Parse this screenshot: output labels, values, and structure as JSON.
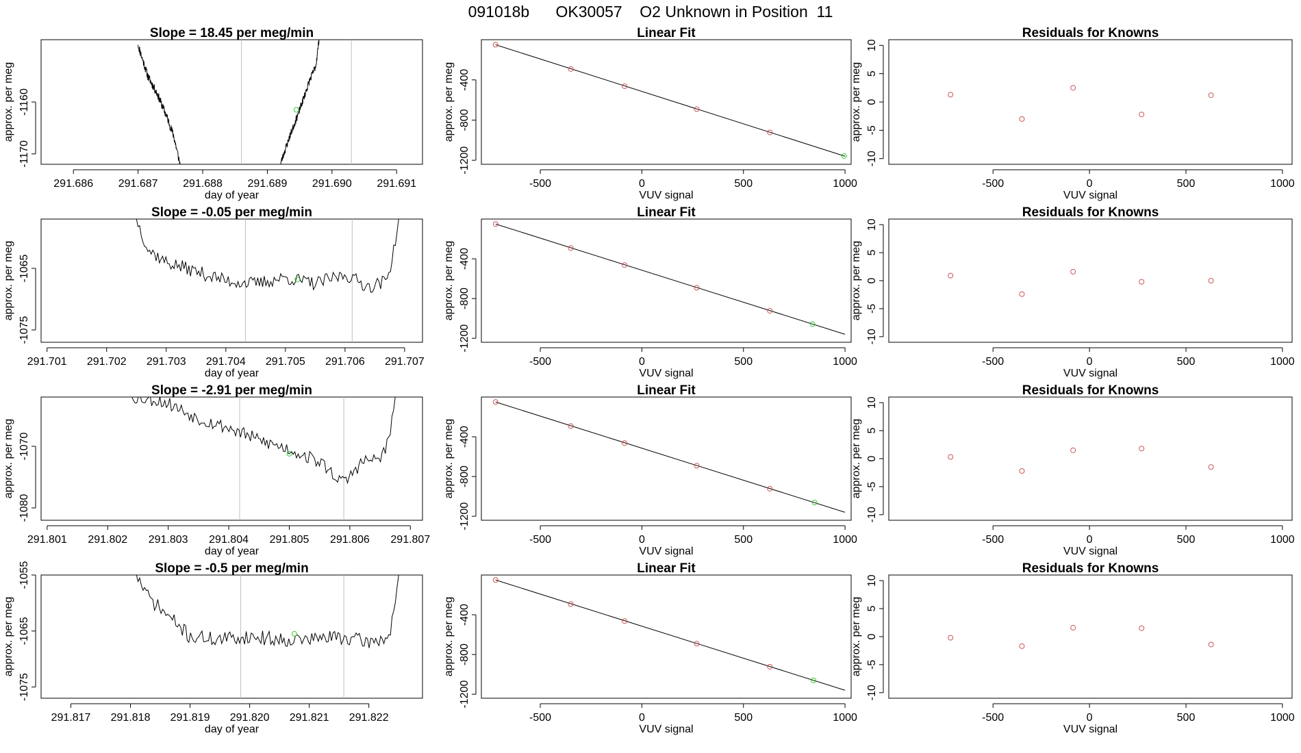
{
  "header": {
    "run_id": "091018b",
    "tank_id": "OK30057",
    "description": "O2 Unknown in Position  11"
  },
  "colors": {
    "known": "#cc5555",
    "unknown": "#33cc33",
    "line": "#000000",
    "marker_line": "#bfbfbf"
  },
  "chart_data": [
    {
      "type": "line",
      "row": 0,
      "panel": "trace",
      "title": "Slope =  18.45  per meg/min",
      "xlabel": "day of year",
      "ylabel": "approx. per meg",
      "xlim": [
        291.6855,
        291.6914
      ],
      "ylim": [
        -1172,
        -1148
      ],
      "x_ticks": [
        291.686,
        291.687,
        291.688,
        291.689,
        291.69,
        291.691
      ],
      "x_tick_labels": [
        "291.686",
        "291.687",
        "291.688",
        "291.689",
        "291.690",
        "291.691"
      ],
      "y_ticks": [
        -1160,
        -1170
      ],
      "y_tick_labels": [
        "-1160",
        "-1170"
      ],
      "vlines": [
        291.6886,
        291.6903
      ],
      "segments": [
        {
          "start": 291.687,
          "end": 291.68765,
          "seed": 11,
          "noise": 0.8,
          "knots": [
            [
              291.687,
              -1149
            ],
            [
              291.68715,
              -1155
            ],
            [
              291.6873,
              -1158.5
            ],
            [
              291.68745,
              -1163
            ],
            [
              291.68755,
              -1166.5
            ],
            [
              291.68765,
              -1172
            ]
          ]
        },
        {
          "start": 291.6892,
          "end": 291.6898,
          "seed": 23,
          "noise": 0.7,
          "knots": [
            [
              291.6892,
              -1172
            ],
            [
              291.68935,
              -1166.5
            ],
            [
              291.6895,
              -1161.5
            ],
            [
              291.68965,
              -1156
            ],
            [
              291.68975,
              -1153
            ],
            [
              291.6898,
              -1148
            ]
          ]
        }
      ],
      "unknown_point": {
        "x": 291.68945,
        "y": -1161.5
      }
    },
    {
      "type": "scatter",
      "row": 0,
      "panel": "fit",
      "title": "Linear Fit",
      "xlabel": "VUV signal",
      "ylabel": "approx. per meg",
      "xlim": [
        -790,
        1030
      ],
      "ylim": [
        -1240,
        0
      ],
      "x_ticks": [
        -500,
        0,
        500,
        1000
      ],
      "x_tick_labels": [
        "-500",
        "0",
        "500",
        "1000"
      ],
      "y_ticks": [
        -400,
        -800,
        -1200
      ],
      "y_tick_labels": [
        "-400",
        "-800",
        "-1200"
      ],
      "fit_line": [
        [
          -720,
          -50
        ],
        [
          1000,
          -1160
        ]
      ],
      "knowns": [
        [
          -720,
          -50
        ],
        [
          -350,
          -292
        ],
        [
          -85,
          -463
        ],
        [
          270,
          -691
        ],
        [
          630,
          -923
        ]
      ],
      "unknown": [
        [
          995,
          -1158
        ]
      ]
    },
    {
      "type": "scatter",
      "row": 0,
      "panel": "resid",
      "title": "Residuals for Knowns",
      "xlabel": "VUV signal",
      "ylabel": "approx. per meg",
      "xlim": [
        -1040,
        1050
      ],
      "ylim": [
        -11,
        11
      ],
      "x_ticks": [
        -500,
        0,
        500,
        1000
      ],
      "x_tick_labels": [
        "-500",
        "0",
        "500",
        "1000"
      ],
      "y_ticks": [
        10,
        5,
        0,
        -5,
        -10
      ],
      "y_tick_labels": [
        "10",
        "5",
        "0",
        "-5",
        "-10"
      ],
      "points": [
        [
          -720,
          1.3
        ],
        [
          -350,
          -3.0
        ],
        [
          -85,
          2.5
        ],
        [
          270,
          -2.2
        ],
        [
          630,
          1.2
        ]
      ]
    },
    {
      "type": "line",
      "row": 1,
      "panel": "trace",
      "title": "Slope =  -0.05  per meg/min",
      "xlabel": "day of year",
      "ylabel": "approx. per meg",
      "xlim": [
        291.7009,
        291.7073
      ],
      "ylim": [
        -1077,
        -1057
      ],
      "x_ticks": [
        291.701,
        291.702,
        291.703,
        291.704,
        291.705,
        291.706,
        291.707
      ],
      "x_tick_labels": [
        "291.701",
        "291.702",
        "291.703",
        "291.704",
        "291.705",
        "291.706",
        "291.707"
      ],
      "y_ticks": [
        -1065,
        -1075
      ],
      "y_tick_labels": [
        "-1065",
        "-1075"
      ],
      "vlines": [
        291.70433,
        291.70612
      ],
      "segments": [
        {
          "start": 291.7025,
          "end": 291.7069,
          "seed": 37,
          "noise": 1.1,
          "knots": [
            [
              291.7025,
              -1057
            ],
            [
              291.7027,
              -1062
            ],
            [
              291.703,
              -1064
            ],
            [
              291.7035,
              -1065.5
            ],
            [
              291.704,
              -1067
            ],
            [
              291.7045,
              -1067.5
            ],
            [
              291.705,
              -1066.5
            ],
            [
              291.7055,
              -1067.5
            ],
            [
              291.706,
              -1066
            ],
            [
              291.7064,
              -1068
            ],
            [
              291.7067,
              -1067
            ],
            [
              291.7068,
              -1063
            ],
            [
              291.7069,
              -1057
            ]
          ]
        }
      ],
      "unknown_point": {
        "x": 291.7052,
        "y": -1066.8
      }
    },
    {
      "type": "scatter",
      "row": 1,
      "panel": "fit",
      "title": "Linear Fit",
      "xlabel": "VUV signal",
      "ylabel": "approx. per meg",
      "xlim": [
        -790,
        1030
      ],
      "ylim": [
        -1240,
        0
      ],
      "x_ticks": [
        -500,
        0,
        500,
        1000
      ],
      "x_tick_labels": [
        "-500",
        "0",
        "500",
        "1000"
      ],
      "y_ticks": [
        -400,
        -800,
        -1200
      ],
      "y_tick_labels": [
        "-400",
        "-800",
        "-1200"
      ],
      "fit_line": [
        [
          -720,
          -50
        ],
        [
          1000,
          -1160
        ]
      ],
      "knowns": [
        [
          -720,
          -50
        ],
        [
          -350,
          -292
        ],
        [
          -85,
          -463
        ],
        [
          270,
          -691
        ],
        [
          630,
          -923
        ]
      ],
      "unknown": [
        [
          840,
          -1057
        ]
      ]
    },
    {
      "type": "scatter",
      "row": 1,
      "panel": "resid",
      "title": "Residuals for Knowns",
      "xlabel": "VUV signal",
      "ylabel": "approx. per meg",
      "xlim": [
        -1040,
        1050
      ],
      "ylim": [
        -11,
        11
      ],
      "x_ticks": [
        -500,
        0,
        500,
        1000
      ],
      "x_tick_labels": [
        "-500",
        "0",
        "500",
        "1000"
      ],
      "y_ticks": [
        10,
        5,
        0,
        -5,
        -10
      ],
      "y_tick_labels": [
        "10",
        "5",
        "0",
        "-5",
        "-10"
      ],
      "points": [
        [
          -720,
          0.9
        ],
        [
          -350,
          -2.4
        ],
        [
          -85,
          1.6
        ],
        [
          270,
          -0.2
        ],
        [
          630,
          0.0
        ]
      ]
    },
    {
      "type": "line",
      "row": 2,
      "panel": "trace",
      "title": "Slope =  -2.91  per meg/min",
      "xlabel": "day of year",
      "ylabel": "approx. per meg",
      "xlim": [
        291.8009,
        291.8072
      ],
      "ylim": [
        -1082,
        -1062
      ],
      "x_ticks": [
        291.801,
        291.802,
        291.803,
        291.804,
        291.805,
        291.806,
        291.807
      ],
      "x_tick_labels": [
        "291.801",
        "291.802",
        "291.803",
        "291.804",
        "291.805",
        "291.806",
        "291.807"
      ],
      "y_ticks": [
        -1070,
        -1080
      ],
      "y_tick_labels": [
        "-1070",
        "-1080"
      ],
      "vlines": [
        291.80418,
        291.8059
      ],
      "segments": [
        {
          "start": 291.8024,
          "end": 291.80675,
          "seed": 53,
          "noise": 1.1,
          "knots": [
            [
              291.8024,
              -1062
            ],
            [
              291.8028,
              -1062.5
            ],
            [
              291.803,
              -1063
            ],
            [
              291.8035,
              -1065.5
            ],
            [
              291.804,
              -1067
            ],
            [
              291.8045,
              -1069
            ],
            [
              291.805,
              -1070.5
            ],
            [
              291.8055,
              -1072.5
            ],
            [
              291.8059,
              -1076
            ],
            [
              291.8062,
              -1072.5
            ],
            [
              291.8065,
              -1072
            ],
            [
              291.80665,
              -1069
            ],
            [
              291.80675,
              -1062
            ]
          ]
        }
      ],
      "unknown_point": {
        "x": 291.805,
        "y": -1071.2
      }
    },
    {
      "type": "scatter",
      "row": 2,
      "panel": "fit",
      "title": "Linear Fit",
      "xlabel": "VUV signal",
      "ylabel": "approx. per meg",
      "xlim": [
        -790,
        1030
      ],
      "ylim": [
        -1240,
        0
      ],
      "x_ticks": [
        -500,
        0,
        500,
        1000
      ],
      "x_tick_labels": [
        "-500",
        "0",
        "500",
        "1000"
      ],
      "y_ticks": [
        -400,
        -800,
        -1200
      ],
      "y_tick_labels": [
        "-400",
        "-800",
        "-1200"
      ],
      "fit_line": [
        [
          -720,
          -50
        ],
        [
          1000,
          -1160
        ]
      ],
      "knowns": [
        [
          -720,
          -50
        ],
        [
          -350,
          -292
        ],
        [
          -85,
          -463
        ],
        [
          270,
          -691
        ],
        [
          630,
          -923
        ]
      ],
      "unknown": [
        [
          850,
          -1062
        ]
      ]
    },
    {
      "type": "scatter",
      "row": 2,
      "panel": "resid",
      "title": "Residuals for Knowns",
      "xlabel": "VUV signal",
      "ylabel": "approx. per meg",
      "xlim": [
        -1040,
        1050
      ],
      "ylim": [
        -11,
        11
      ],
      "x_ticks": [
        -500,
        0,
        500,
        1000
      ],
      "x_tick_labels": [
        "-500",
        "0",
        "500",
        "1000"
      ],
      "y_ticks": [
        10,
        5,
        0,
        -5,
        -10
      ],
      "y_tick_labels": [
        "10",
        "5",
        "0",
        "-5",
        "-10"
      ],
      "points": [
        [
          -720,
          0.3
        ],
        [
          -350,
          -2.2
        ],
        [
          -85,
          1.5
        ],
        [
          270,
          1.8
        ],
        [
          630,
          -1.5
        ]
      ]
    },
    {
      "type": "line",
      "row": 3,
      "panel": "trace",
      "title": "Slope =  -0.5  per meg/min",
      "xlabel": "day of year",
      "ylabel": "approx. per meg",
      "xlim": [
        291.8165,
        291.8229
      ],
      "ylim": [
        -1077,
        -1055
      ],
      "x_ticks": [
        291.817,
        291.818,
        291.819,
        291.82,
        291.821,
        291.822
      ],
      "x_tick_labels": [
        "291.817",
        "291.818",
        "291.819",
        "291.820",
        "291.821",
        "291.822"
      ],
      "y_ticks": [
        -1055,
        -1065,
        -1075
      ],
      "y_tick_labels": [
        "-1055",
        "-1065",
        "-1075"
      ],
      "vlines": [
        291.81985,
        291.82158
      ],
      "segments": [
        {
          "start": 291.8181,
          "end": 291.8225,
          "seed": 71,
          "noise": 1.3,
          "knots": [
            [
              291.8181,
              -1055
            ],
            [
              291.8183,
              -1059
            ],
            [
              291.8186,
              -1062
            ],
            [
              291.819,
              -1066
            ],
            [
              291.8195,
              -1066.5
            ],
            [
              291.82,
              -1066
            ],
            [
              291.8205,
              -1066.5
            ],
            [
              291.821,
              -1066.5
            ],
            [
              291.8215,
              -1066
            ],
            [
              291.822,
              -1067
            ],
            [
              291.82235,
              -1066
            ],
            [
              291.8225,
              -1055
            ]
          ]
        }
      ],
      "unknown_point": {
        "x": 291.82075,
        "y": -1065.5
      }
    },
    {
      "type": "scatter",
      "row": 3,
      "panel": "fit",
      "title": "Linear Fit",
      "xlabel": "VUV signal",
      "ylabel": "approx. per meg",
      "xlim": [
        -790,
        1030
      ],
      "ylim": [
        -1240,
        0
      ],
      "x_ticks": [
        -500,
        0,
        500,
        1000
      ],
      "x_tick_labels": [
        "-500",
        "0",
        "500",
        "1000"
      ],
      "y_ticks": [
        -400,
        -800,
        -1200
      ],
      "y_tick_labels": [
        "-400",
        "-800",
        "-1200"
      ],
      "fit_line": [
        [
          -720,
          -50
        ],
        [
          1000,
          -1160
        ]
      ],
      "knowns": [
        [
          -720,
          -50
        ],
        [
          -350,
          -292
        ],
        [
          -85,
          -463
        ],
        [
          270,
          -691
        ],
        [
          630,
          -923
        ]
      ],
      "unknown": [
        [
          845,
          -1060
        ]
      ]
    },
    {
      "type": "scatter",
      "row": 3,
      "panel": "resid",
      "title": "Residuals for Knowns",
      "xlabel": "VUV signal",
      "ylabel": "approx. per meg",
      "xlim": [
        -1040,
        1050
      ],
      "ylim": [
        -11,
        11
      ],
      "x_ticks": [
        -500,
        0,
        500,
        1000
      ],
      "x_tick_labels": [
        "-500",
        "0",
        "500",
        "1000"
      ],
      "y_ticks": [
        10,
        5,
        0,
        -5,
        -10
      ],
      "y_tick_labels": [
        "10",
        "5",
        "0",
        "-5",
        "-10"
      ],
      "points": [
        [
          -720,
          -0.2
        ],
        [
          -350,
          -1.7
        ],
        [
          -85,
          1.6
        ],
        [
          270,
          1.5
        ],
        [
          630,
          -1.4
        ]
      ]
    }
  ]
}
